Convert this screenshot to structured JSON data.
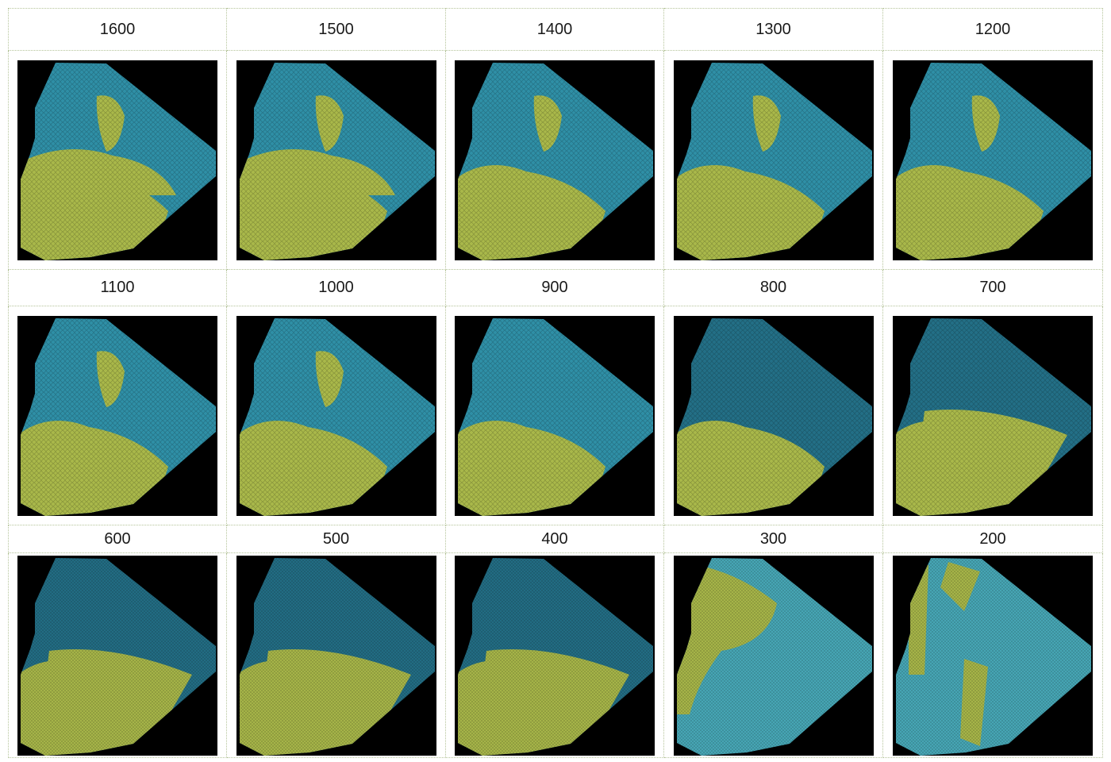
{
  "rows": [
    {
      "labels": [
        "1600",
        "1500",
        "1400",
        "1300",
        "1200"
      ]
    },
    {
      "labels": [
        "1100",
        "1000",
        "900",
        "800",
        "700"
      ]
    },
    {
      "labels": [
        "600",
        "500",
        "400",
        "300",
        "200"
      ]
    }
  ],
  "colors": {
    "background": "#000000",
    "teal": "#2f8fa6",
    "teal_dark": "#236f86",
    "teal_light": "#48a9b8",
    "yellow_green": "#a9b84a",
    "border": "#b5c49a"
  }
}
